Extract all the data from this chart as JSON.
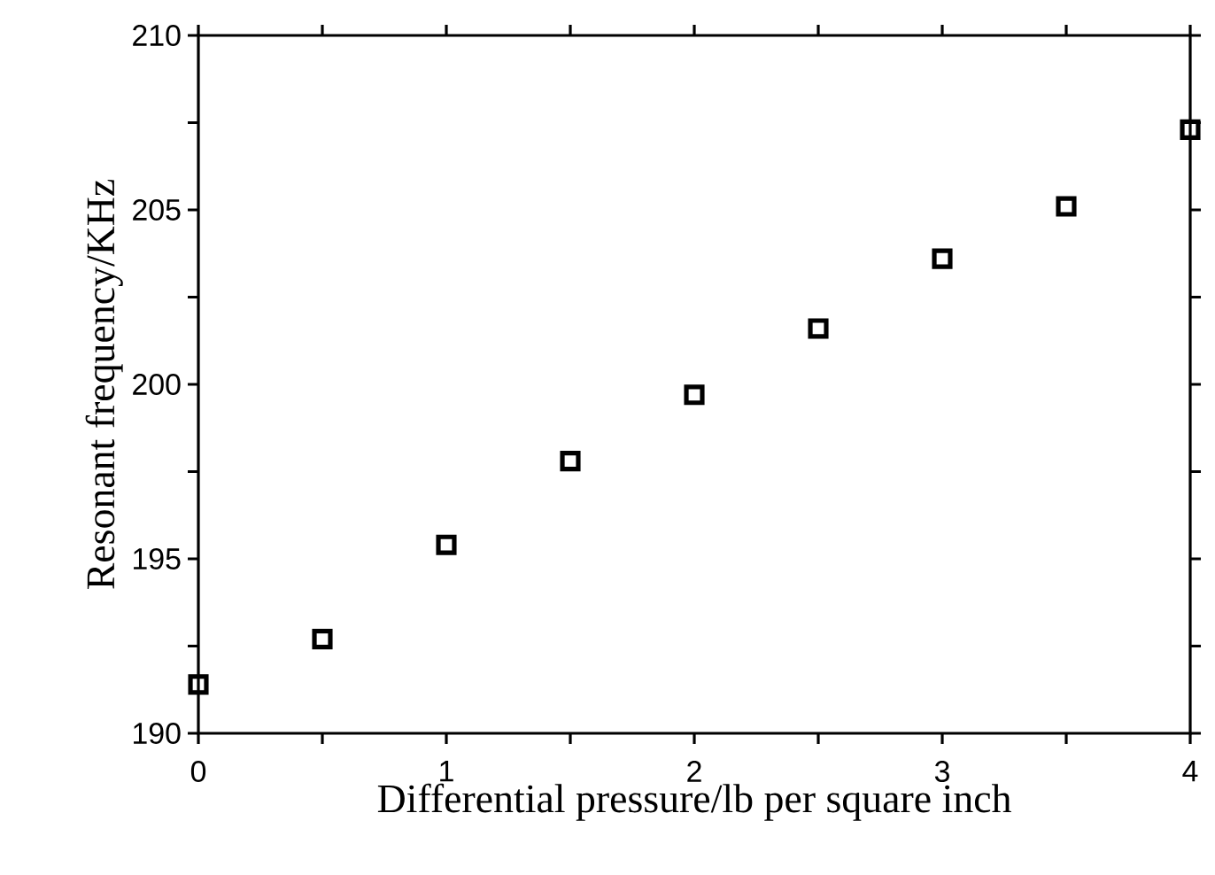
{
  "chart_data": {
    "type": "scatter",
    "xlabel": "Differential pressure/lb per square inch",
    "ylabel": "Resonant frequency/KHz",
    "x": [
      0,
      0.5,
      1,
      1.5,
      2,
      2.5,
      3,
      3.5,
      4
    ],
    "series": [
      {
        "color": "#000000",
        "values": [
          191.4,
          192.7,
          195.4,
          197.8,
          199.7,
          201.6,
          203.6,
          205.1,
          207.3
        ]
      }
    ],
    "marker": "square",
    "grid": false,
    "legend": false,
    "xlim": [
      0,
      4
    ],
    "ylim": [
      190,
      210
    ],
    "xticks": [
      0,
      {
        "value": 0.5,
        "label": null
      },
      1,
      {
        "value": 1.5,
        "label": null
      },
      2,
      {
        "value": 2.5,
        "label": null
      },
      3,
      {
        "value": 3.5,
        "label": null
      },
      4
    ],
    "yticks": [
      190,
      {
        "value": 192.5,
        "label": null
      },
      195,
      {
        "value": 197.5,
        "label": null
      },
      200,
      {
        "value": 202.5,
        "label": null
      },
      205,
      {
        "value": 207.5,
        "label": null
      },
      210
    ]
  }
}
